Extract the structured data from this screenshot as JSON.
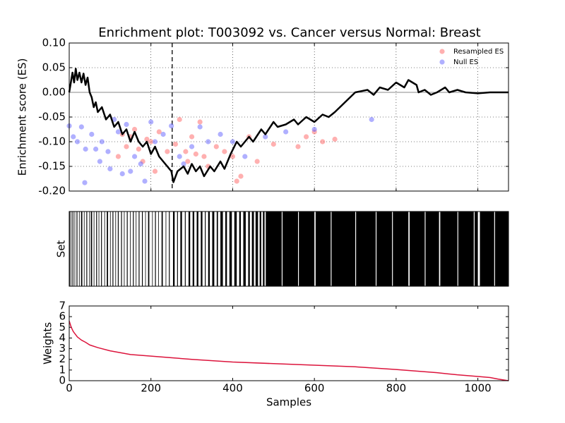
{
  "chart_data": [
    {
      "type": "line",
      "title": "Enrichment plot: T003092 vs. Cancer versus Normal: Breast",
      "ylabel": "Enrichment score (ES)",
      "xlim": [
        0,
        1075
      ],
      "ylim": [
        -0.2,
        0.1
      ],
      "yticks": [
        {
          "value": 0.1,
          "label": "0.10"
        },
        0.05,
        {
          "value": 0,
          "label": "0.00"
        },
        -0.05,
        {
          "value": -0.1,
          "label": "-0.10"
        },
        -0.15,
        {
          "value": -0.2,
          "label": "-0.20"
        }
      ],
      "grid": true,
      "legend": "upper right",
      "hline": 0,
      "marker_x": 252,
      "es_curve": {
        "color": "#000000",
        "x": [
          0,
          8,
          12,
          16,
          20,
          25,
          30,
          35,
          40,
          45,
          50,
          55,
          60,
          65,
          70,
          80,
          90,
          100,
          110,
          120,
          130,
          140,
          150,
          160,
          170,
          180,
          190,
          200,
          210,
          220,
          230,
          240,
          250,
          255,
          265,
          280,
          290,
          300,
          310,
          320,
          330,
          345,
          355,
          370,
          380,
          395,
          410,
          420,
          440,
          450,
          470,
          480,
          500,
          510,
          530,
          550,
          560,
          580,
          600,
          620,
          635,
          650,
          700,
          730,
          745,
          760,
          780,
          800,
          820,
          830,
          840,
          850,
          855,
          870,
          885,
          900,
          920,
          930,
          950,
          970,
          1000,
          1030,
          1075
        ],
        "values": [
          0.0,
          0.04,
          0.02,
          0.048,
          0.025,
          0.04,
          0.02,
          0.038,
          0.015,
          0.03,
          0.0,
          -0.01,
          -0.03,
          -0.02,
          -0.04,
          -0.03,
          -0.055,
          -0.045,
          -0.07,
          -0.06,
          -0.085,
          -0.075,
          -0.1,
          -0.08,
          -0.1,
          -0.11,
          -0.1,
          -0.125,
          -0.11,
          -0.13,
          -0.14,
          -0.15,
          -0.16,
          -0.182,
          -0.16,
          -0.15,
          -0.165,
          -0.145,
          -0.16,
          -0.15,
          -0.17,
          -0.15,
          -0.16,
          -0.14,
          -0.155,
          -0.125,
          -0.1,
          -0.11,
          -0.09,
          -0.1,
          -0.075,
          -0.085,
          -0.06,
          -0.07,
          -0.065,
          -0.055,
          -0.065,
          -0.05,
          -0.06,
          -0.045,
          -0.05,
          -0.04,
          0.0,
          0.005,
          -0.005,
          0.01,
          0.005,
          0.02,
          0.01,
          0.025,
          0.02,
          0.015,
          0.0,
          0.005,
          -0.005,
          0.0,
          0.01,
          0.0,
          0.005,
          0.0,
          -0.002,
          0.0,
          0.0
        ]
      },
      "series": [
        {
          "name": "Resampled ES",
          "type": "scatter",
          "color": "#ff7070",
          "x": [
            130,
            140,
            150,
            160,
            170,
            180,
            190,
            200,
            210,
            220,
            240,
            260,
            270,
            285,
            290,
            300,
            310,
            320,
            330,
            340,
            360,
            380,
            400,
            410,
            420,
            440,
            460,
            500,
            560,
            580,
            620,
            650,
            600,
            120
          ],
          "values": [
            -0.085,
            -0.11,
            -0.09,
            -0.075,
            -0.115,
            -0.14,
            -0.095,
            -0.1,
            -0.16,
            -0.08,
            -0.12,
            -0.105,
            -0.055,
            -0.12,
            -0.14,
            -0.09,
            -0.125,
            -0.06,
            -0.13,
            -0.15,
            -0.11,
            -0.12,
            -0.13,
            -0.18,
            -0.17,
            -0.09,
            -0.14,
            -0.105,
            -0.11,
            -0.09,
            -0.1,
            -0.095,
            -0.08,
            -0.13
          ]
        },
        {
          "name": "Null ES",
          "type": "scatter",
          "color": "#7070ff",
          "x": [
            0,
            10,
            20,
            30,
            40,
            38,
            55,
            65,
            75,
            80,
            95,
            100,
            110,
            120,
            130,
            140,
            150,
            160,
            175,
            185,
            200,
            210,
            250,
            280,
            300,
            320,
            340,
            370,
            400,
            430,
            480,
            530,
            600,
            740,
            230,
            270
          ],
          "values": [
            -0.068,
            -0.09,
            -0.1,
            -0.07,
            -0.115,
            -0.183,
            -0.085,
            -0.115,
            -0.14,
            -0.1,
            -0.12,
            -0.155,
            -0.055,
            -0.08,
            -0.165,
            -0.065,
            -0.16,
            -0.13,
            -0.145,
            -0.18,
            -0.06,
            -0.1,
            -0.068,
            -0.145,
            -0.11,
            -0.07,
            -0.1,
            -0.085,
            -0.1,
            -0.13,
            -0.09,
            -0.08,
            -0.075,
            -0.055,
            -0.085,
            -0.13
          ]
        }
      ]
    },
    {
      "type": "barcode",
      "ylabel": "Set",
      "xlim": [
        0,
        1075
      ],
      "color": "#000000",
      "spans": [
        [
          0,
          2
        ],
        [
          4,
          5
        ],
        [
          8,
          10
        ],
        [
          13,
          14
        ],
        [
          18,
          20
        ],
        [
          24,
          25
        ],
        [
          29,
          32
        ],
        [
          36,
          37
        ],
        [
          42,
          44
        ],
        [
          49,
          50
        ],
        [
          53,
          56
        ],
        [
          60,
          61
        ],
        [
          66,
          68
        ],
        [
          72,
          73
        ],
        [
          78,
          80
        ],
        [
          86,
          87
        ],
        [
          92,
          95
        ],
        [
          100,
          101
        ],
        [
          106,
          108
        ],
        [
          113,
          114
        ],
        [
          119,
          121
        ],
        [
          127,
          129
        ],
        [
          134,
          135
        ],
        [
          141,
          143
        ],
        [
          149,
          150
        ],
        [
          156,
          158
        ],
        [
          163,
          164
        ],
        [
          170,
          172
        ],
        [
          178,
          180
        ],
        [
          186,
          187
        ],
        [
          193,
          196
        ],
        [
          203,
          204
        ],
        [
          210,
          212
        ],
        [
          218,
          219
        ],
        [
          226,
          229
        ],
        [
          236,
          237
        ],
        [
          244,
          246
        ],
        [
          254,
          258
        ],
        [
          264,
          266
        ],
        [
          272,
          276
        ],
        [
          283,
          285
        ],
        [
          292,
          296
        ],
        [
          302,
          306
        ],
        [
          312,
          316
        ],
        [
          322,
          326
        ],
        [
          332,
          334
        ],
        [
          340,
          344
        ],
        [
          350,
          355
        ],
        [
          361,
          364
        ],
        [
          370,
          376
        ],
        [
          382,
          386
        ],
        [
          392,
          398
        ],
        [
          404,
          410
        ],
        [
          416,
          420
        ],
        [
          426,
          432
        ],
        [
          438,
          442
        ],
        [
          447,
          452
        ],
        [
          456,
          462
        ],
        [
          466,
          470
        ],
        [
          474,
          478
        ],
        [
          481,
          520
        ],
        [
          522,
          560
        ],
        [
          562,
          600
        ],
        [
          603,
          640
        ],
        [
          642,
          700
        ],
        [
          702,
          750
        ],
        [
          752,
          790
        ],
        [
          792,
          830
        ],
        [
          833,
          870
        ],
        [
          872,
          905
        ],
        [
          908,
          950
        ],
        [
          952,
          990
        ],
        [
          992,
          1000
        ],
        [
          1005,
          1040
        ],
        [
          1042,
          1075
        ]
      ]
    },
    {
      "type": "line",
      "ylabel": "Weights",
      "xlabel": "Samples",
      "xlim": [
        0,
        1075
      ],
      "ylim": [
        0,
        7
      ],
      "yticks": [
        0,
        1,
        2,
        3,
        4,
        5,
        6,
        7
      ],
      "xticks": [
        0,
        200,
        400,
        600,
        800,
        1000
      ],
      "series": [
        {
          "color": "#dc143c",
          "x": [
            0,
            5,
            10,
            20,
            30,
            40,
            50,
            70,
            100,
            150,
            200,
            300,
            400,
            500,
            600,
            700,
            800,
            850,
            900,
            950,
            1000,
            1030,
            1050,
            1075
          ],
          "values": [
            5.6,
            5.0,
            4.6,
            4.1,
            3.8,
            3.6,
            3.35,
            3.1,
            2.8,
            2.45,
            2.3,
            2.0,
            1.75,
            1.6,
            1.45,
            1.3,
            1.05,
            0.9,
            0.75,
            0.55,
            0.4,
            0.3,
            0.15,
            0.0
          ]
        }
      ]
    }
  ]
}
